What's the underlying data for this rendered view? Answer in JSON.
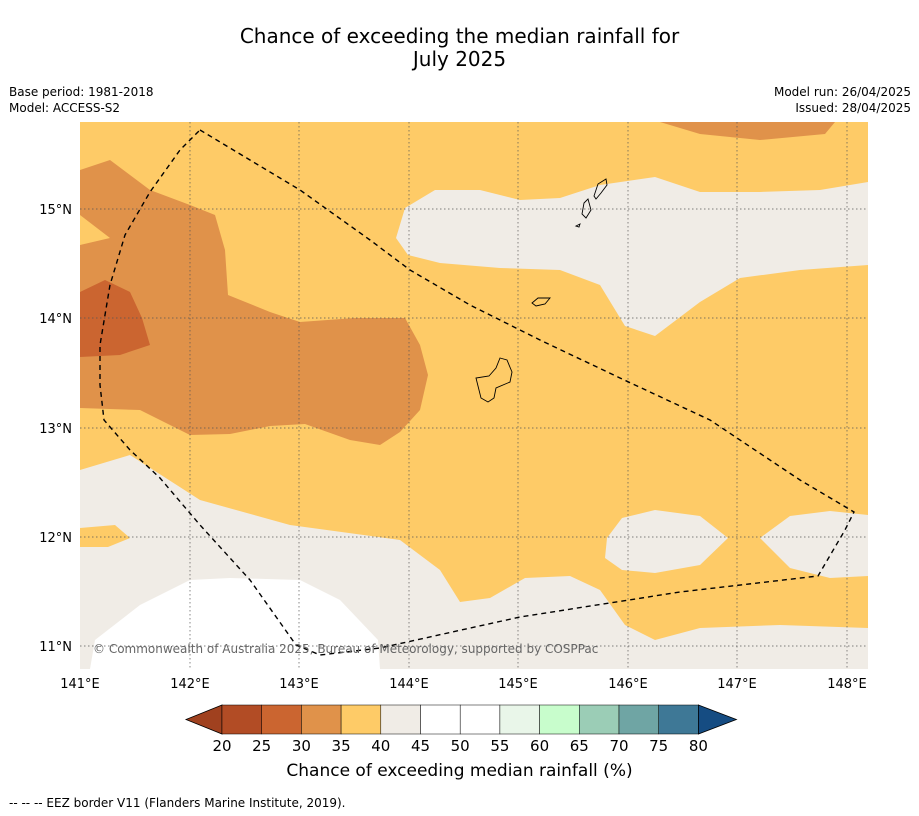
{
  "title": {
    "line1": "Chance of exceeding the median rainfall for",
    "line2": "July 2025"
  },
  "meta": {
    "base_period": "Base period: 1981-2018",
    "model": "Model: ACCESS-S2",
    "model_run": "Model run: 26/04/2025",
    "issued": "Issued: 28/04/2025"
  },
  "map": {
    "lon_ticks": [
      "141°E",
      "142°E",
      "143°E",
      "144°E",
      "145°E",
      "146°E",
      "147°E",
      "148°E"
    ],
    "lat_ticks": [
      "15°N",
      "14°N",
      "13°N",
      "12°N",
      "11°N"
    ],
    "copyright": "© Commonwealth of Australia 2025, Bureau of Meteorology, supported by COSPPac",
    "colors": {
      "c25_30": "#cb6530",
      "c30_35": "#e0924a",
      "c35_40": "#fecb67",
      "c40_45": "#f0ece6",
      "c45_55": "#ffffff",
      "border": "#000000"
    }
  },
  "colorbar": {
    "title": "Chance of exceeding median rainfall (%)",
    "ticks": [
      "20",
      "25",
      "30",
      "35",
      "40",
      "45",
      "50",
      "55",
      "60",
      "65",
      "70",
      "75",
      "80"
    ],
    "colors": [
      "#a0411f",
      "#b24c25",
      "#cb6530",
      "#e0924a",
      "#fecb67",
      "#f0ece6",
      "#ffffff",
      "#ffffff",
      "#e9f6e9",
      "#c8fdcc",
      "#9bcdb6",
      "#6fa5a4",
      "#3e7896",
      "#154c82"
    ]
  },
  "footnote": "--  --  -- EEZ border V11 (Flanders Marine Institute, 2019)."
}
